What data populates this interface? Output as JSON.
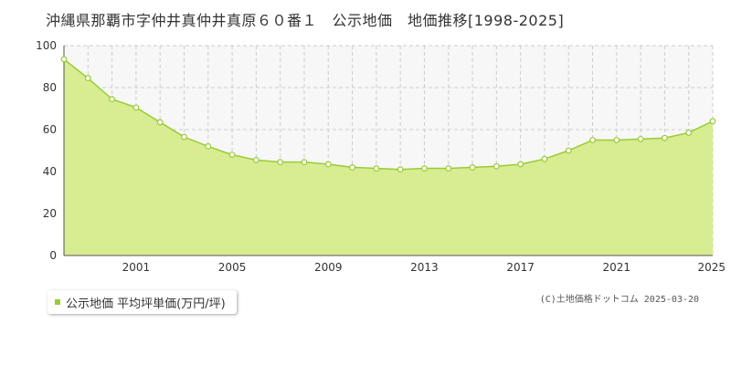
{
  "title": "沖縄県那覇市字仲井真仲井真原６０番１　公示地価　地価推移[1998-2025]",
  "legend": {
    "label": "公示地価 平均坪単価(万円/坪)",
    "marker_color": "#99cc33"
  },
  "copyright": "(C)土地価格ドットコム 2025-03-20",
  "colors": {
    "area_fill": "#d8ec92",
    "line": "#99cc33",
    "grid": "#cccccc",
    "plot_bg": "#f7f7f7"
  },
  "chart_data": {
    "type": "area",
    "title": "沖縄県那覇市字仲井真仲井真原６０番１　公示地価　地価推移[1998-2025]",
    "xlabel": "",
    "ylabel": "",
    "xlim": [
      1998,
      2025
    ],
    "ylim": [
      0,
      100
    ],
    "x_tick_labels": [
      "2001",
      "2005",
      "2009",
      "2013",
      "2017",
      "2021",
      "2025"
    ],
    "y_tick_labels": [
      "0",
      "20",
      "40",
      "60",
      "80",
      "100"
    ],
    "grid": true,
    "legend_position": "bottom-left",
    "series": [
      {
        "name": "公示地価 平均坪単価(万円/坪)",
        "x": [
          1998,
          1999,
          2000,
          2001,
          2002,
          2003,
          2004,
          2005,
          2006,
          2007,
          2008,
          2009,
          2010,
          2011,
          2012,
          2013,
          2014,
          2015,
          2016,
          2017,
          2018,
          2019,
          2020,
          2021,
          2022,
          2023,
          2024,
          2025
        ],
        "values": [
          93.5,
          84.5,
          74.5,
          70.5,
          63.5,
          56.5,
          52.0,
          48.0,
          45.5,
          44.5,
          44.5,
          43.5,
          42.0,
          41.5,
          41.0,
          41.5,
          41.5,
          42.0,
          42.5,
          43.5,
          46.0,
          50.0,
          55.0,
          55.0,
          55.5,
          56.0,
          58.5,
          64.0
        ]
      }
    ]
  }
}
